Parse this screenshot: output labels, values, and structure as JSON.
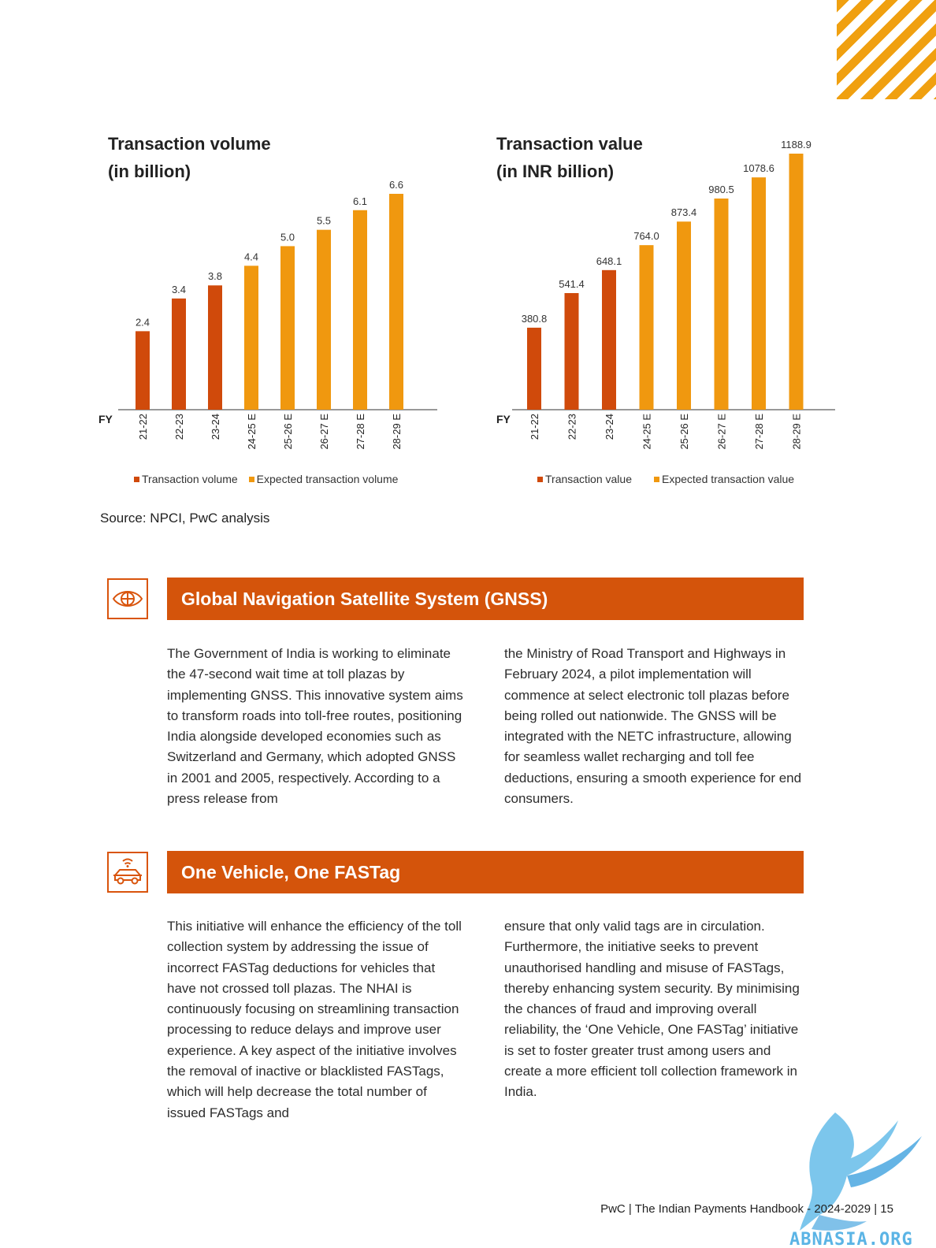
{
  "charts": {
    "volume": {
      "title_line1": "Transaction volume",
      "title_line2": "(in billion)",
      "axis_label": "FY",
      "legend_actual": "Transaction volume",
      "legend_expected": "Expected transaction volume"
    },
    "value": {
      "title_line1": "Transaction value",
      "title_line2": "(in INR billion)",
      "axis_label": "FY",
      "legend_actual": "Transaction value",
      "legend_expected": "Expected transaction value"
    }
  },
  "chart_data": [
    {
      "type": "bar",
      "title": "Transaction volume (in billion)",
      "xlabel": "FY",
      "ylabel": "",
      "categories": [
        "21-22",
        "22-23",
        "23-24",
        "24-25 E",
        "25-26 E",
        "26-27 E",
        "27-28 E",
        "28-29 E"
      ],
      "values": [
        2.4,
        3.4,
        3.8,
        4.4,
        5.0,
        5.5,
        6.1,
        6.6
      ],
      "labels": [
        "2.4",
        "3.4",
        "3.8",
        "4.4",
        "5.0",
        "5.5",
        "6.1",
        "6.6"
      ],
      "expected": [
        false,
        false,
        false,
        true,
        true,
        true,
        true,
        true
      ],
      "ylim": [
        0,
        6.6
      ],
      "legend": [
        "Transaction volume",
        "Expected transaction volume"
      ],
      "colors": {
        "actual": "#d04a0b",
        "expected": "#f0980f"
      }
    },
    {
      "type": "bar",
      "title": "Transaction value (in INR billion)",
      "xlabel": "FY",
      "ylabel": "",
      "categories": [
        "21-22",
        "22-23",
        "23-24",
        "24-25 E",
        "25-26 E",
        "26-27 E",
        "27-28 E",
        "28-29 E"
      ],
      "values": [
        380.8,
        541.4,
        648.1,
        764.0,
        873.4,
        980.5,
        1078.6,
        1188.9
      ],
      "labels": [
        "380.8",
        "541.4",
        "648.1",
        "764.0",
        "873.4",
        "980.5",
        "1078.6",
        "1188.9"
      ],
      "expected": [
        false,
        false,
        false,
        true,
        true,
        true,
        true,
        true
      ],
      "ylim": [
        0,
        1188.9
      ],
      "legend": [
        "Transaction value",
        "Expected transaction value"
      ],
      "colors": {
        "actual": "#d04a0b",
        "expected": "#f0980f"
      }
    }
  ],
  "source": "Source: NPCI, PwC analysis",
  "sections": {
    "gnss": {
      "title": "Global Navigation Satellite System (GNSS)",
      "col1": "The Government of India is working to eliminate the 47-second wait time at toll plazas by implementing GNSS. This innovative system aims to transform roads into toll-free routes, positioning India alongside developed economies such as Switzerland and Germany, which adopted GNSS in 2001 and 2005, respectively. According to a press release from",
      "col2": "the Ministry of Road Transport and Highways in February 2024, a pilot implementation will commence at select electronic toll plazas before being rolled out nationwide. The GNSS will be integrated with the NETC infrastructure, allowing for seamless wallet recharging and toll fee deductions, ensuring a smooth experience for end consumers."
    },
    "fastag": {
      "title": "One Vehicle, One FASTag",
      "col1": "This initiative will enhance the efficiency of the toll collection system by addressing the issue of incorrect FASTag deductions for vehicles that have not crossed toll plazas. The NHAI is continuously focusing on streamlining transaction processing to reduce delays and improve user experience. A key aspect of the initiative involves the removal of inactive or blacklisted FASTags, which will help decrease the total number of issued FASTags and",
      "col2": "ensure that only valid tags are in circulation. Furthermore, the initiative seeks to prevent unauthorised handling and misuse of FASTags, thereby enhancing system security. By minimising the chances of fraud and improving overall reliability, the ‘One Vehicle, One FASTag’ initiative is set to foster greater trust among users and create a more efficient toll collection framework in India."
    }
  },
  "footer": "PwC  |  The Indian Payments Handbook - 2024-2029  | 15",
  "watermark_text": "ABNASIA.ORG",
  "colors": {
    "accent": "#d4540b",
    "stripe": "#f0a010",
    "watermark": "#5bb4e5"
  }
}
